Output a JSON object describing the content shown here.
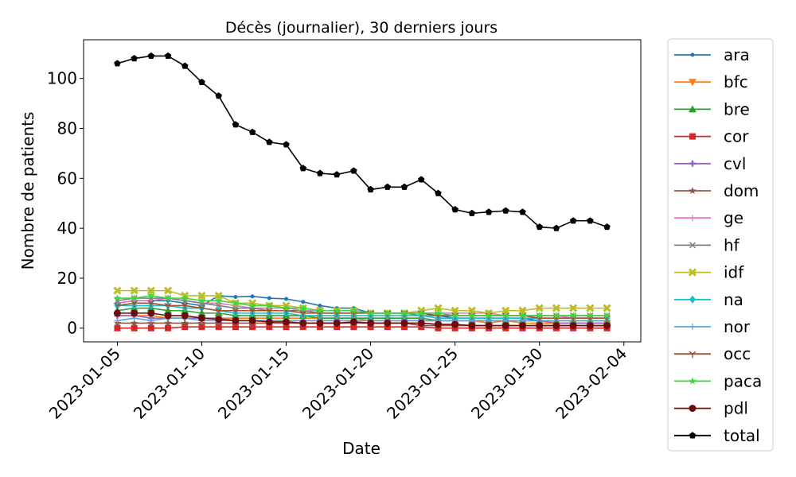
{
  "chart_data": {
    "type": "line",
    "title": "Décès (journalier), 30 derniers jours",
    "xlabel": "Date",
    "ylabel": "Nombre de patients",
    "x": [
      "2023-01-05",
      "2023-01-06",
      "2023-01-07",
      "2023-01-08",
      "2023-01-09",
      "2023-01-10",
      "2023-01-11",
      "2023-01-12",
      "2023-01-13",
      "2023-01-14",
      "2023-01-15",
      "2023-01-16",
      "2023-01-17",
      "2023-01-18",
      "2023-01-19",
      "2023-01-20",
      "2023-01-21",
      "2023-01-22",
      "2023-01-23",
      "2023-01-24",
      "2023-01-25",
      "2023-01-26",
      "2023-01-27",
      "2023-01-28",
      "2023-01-29",
      "2023-01-30",
      "2023-01-31",
      "2023-02-01",
      "2023-02-02",
      "2023-02-03"
    ],
    "xticks": [
      "2023-01-05",
      "2023-01-10",
      "2023-01-15",
      "2023-01-20",
      "2023-01-25",
      "2023-01-30",
      "2023-02-04"
    ],
    "xlim": [
      "2023-01-03",
      "2023-02-05"
    ],
    "yticks": [
      0,
      20,
      40,
      60,
      80,
      100
    ],
    "ylim": [
      -5.5,
      115.5
    ],
    "grid": false,
    "legend_position": "outside-right",
    "series": [
      {
        "name": "ara",
        "color": "#1f77b4",
        "marker": "point",
        "values": [
          10,
          11,
          11,
          11,
          10,
          9,
          13,
          12.5,
          12.7,
          12,
          11.7,
          10.5,
          9,
          8,
          8,
          6,
          6,
          6,
          6,
          5,
          4,
          4,
          4,
          4,
          4,
          3,
          3,
          3,
          3,
          3
        ]
      },
      {
        "name": "bfc",
        "color": "#ff7f0e",
        "marker": "triangle-down",
        "values": [
          5,
          5,
          5,
          4,
          4,
          4,
          4,
          4,
          4,
          4,
          4,
          4,
          4,
          4,
          4,
          3,
          3,
          3,
          3,
          3,
          3,
          3,
          2,
          3,
          2,
          2,
          2,
          2,
          2,
          2
        ]
      },
      {
        "name": "bre",
        "color": "#2ca02c",
        "marker": "triangle-up",
        "values": [
          7,
          8,
          8,
          7,
          7,
          6,
          6,
          5,
          5,
          5,
          5,
          5,
          4,
          4,
          4,
          4,
          4,
          4,
          4,
          3,
          3,
          3,
          3,
          3,
          3,
          3,
          3,
          3,
          3,
          3
        ]
      },
      {
        "name": "cor",
        "color": "#d62728",
        "marker": "square",
        "values": [
          0,
          0,
          0,
          0,
          0.5,
          0.5,
          0.5,
          0.5,
          0.5,
          0.5,
          0.5,
          0.5,
          0.5,
          0.5,
          0.5,
          0.5,
          0.5,
          0.5,
          0.5,
          0,
          0,
          0,
          0,
          0,
          0,
          0,
          0,
          0,
          0,
          0
        ]
      },
      {
        "name": "cvl",
        "color": "#9467bd",
        "marker": "plus",
        "values": [
          5,
          5,
          4,
          4,
          4,
          4,
          4,
          3,
          3,
          3,
          3,
          3,
          3,
          3,
          3,
          3,
          3,
          3,
          3,
          3,
          3,
          3,
          3,
          3,
          3,
          3,
          2,
          2,
          2,
          2
        ]
      },
      {
        "name": "dom",
        "color": "#8c564b",
        "marker": "star",
        "values": [
          2,
          2,
          2,
          2,
          2,
          2,
          2,
          2,
          2,
          2,
          2,
          2,
          2,
          2,
          2,
          2,
          2,
          2,
          1,
          1,
          1,
          1,
          1,
          1,
          1,
          1,
          1,
          1,
          1,
          1
        ]
      },
      {
        "name": "ge",
        "color": "#e377c2",
        "marker": "thin-plus",
        "values": [
          10,
          11,
          11,
          12,
          11,
          10,
          10,
          9,
          8,
          8,
          8,
          7,
          7,
          7,
          7,
          6,
          6,
          6,
          6,
          6,
          6,
          6,
          6,
          5,
          5,
          5,
          5,
          4,
          4,
          4
        ]
      },
      {
        "name": "hf",
        "color": "#7f7f7f",
        "marker": "x",
        "values": [
          11,
          12,
          12,
          12,
          11,
          10,
          9,
          8,
          8,
          7,
          7,
          7,
          6,
          6,
          6,
          6,
          6,
          6,
          5,
          5,
          5,
          5,
          5,
          5,
          5,
          5,
          5,
          5,
          5,
          5
        ]
      },
      {
        "name": "idf",
        "color": "#bcbd22",
        "marker": "x-filled",
        "values": [
          15,
          15,
          15,
          15,
          13,
          13,
          13,
          10,
          10,
          9,
          9,
          8,
          7,
          7,
          7,
          6,
          6,
          6,
          7,
          8,
          7,
          7,
          6,
          7,
          7,
          8,
          8,
          8,
          8,
          8
        ]
      },
      {
        "name": "na",
        "color": "#17becf",
        "marker": "diamond",
        "values": [
          9,
          9,
          9,
          9,
          8,
          8,
          7,
          6,
          6,
          6,
          6,
          5,
          5,
          5,
          5,
          5,
          5,
          5,
          5,
          4,
          4,
          4,
          4,
          4,
          4,
          4,
          4,
          4,
          4,
          4
        ]
      },
      {
        "name": "nor",
        "color": "#5ba3e0",
        "marker": "thin-plus",
        "values": [
          3,
          4,
          3,
          4,
          4,
          3,
          3,
          3,
          3,
          3,
          3,
          3,
          3,
          3,
          3,
          3,
          3,
          3,
          3,
          3,
          3,
          3,
          3,
          3,
          3,
          3,
          3,
          3,
          3,
          3
        ]
      },
      {
        "name": "occ",
        "color": "#a0522d",
        "marker": "tri-down",
        "values": [
          9,
          10,
          10,
          9,
          9,
          8,
          7,
          7,
          7,
          7,
          7,
          6,
          6,
          6,
          6,
          6,
          6,
          6,
          6,
          5,
          5,
          5,
          5,
          5,
          5,
          4,
          4,
          4,
          4,
          4
        ]
      },
      {
        "name": "paca",
        "color": "#3fd63f",
        "marker": "star",
        "values": [
          12,
          12,
          13,
          12,
          12,
          11,
          11,
          10,
          9,
          9,
          8,
          8,
          7,
          7,
          7,
          6,
          6,
          6,
          6,
          6,
          5,
          5,
          5,
          5,
          5,
          5,
          5,
          5,
          5,
          5
        ]
      },
      {
        "name": "pdl",
        "color": "#6e0c0c",
        "marker": "circle",
        "values": [
          6,
          6,
          6,
          5,
          5,
          4,
          3.5,
          3,
          3,
          2.5,
          2.5,
          2,
          2,
          2,
          2.5,
          2,
          2,
          2,
          2,
          1.5,
          1.5,
          1,
          1,
          1,
          1,
          1,
          1,
          1,
          1,
          1
        ]
      },
      {
        "name": "total",
        "color": "#000000",
        "marker": "pentagon",
        "values": [
          106,
          108,
          109,
          109,
          105,
          98.5,
          93,
          81.5,
          78.5,
          74.5,
          73.5,
          64,
          62,
          61.5,
          63,
          55.5,
          56.5,
          56.5,
          59.5,
          54,
          47.5,
          46,
          46.5,
          47,
          46.5,
          40.5,
          40,
          43,
          43,
          40.5
        ]
      }
    ]
  }
}
